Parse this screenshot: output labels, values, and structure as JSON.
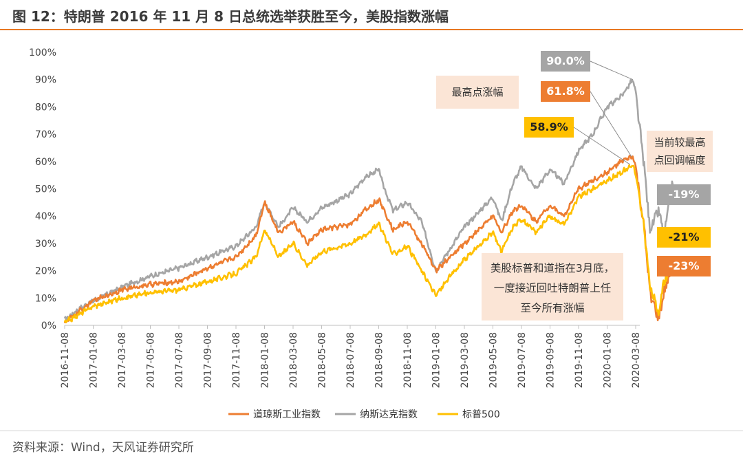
{
  "title": "图 12：特朗普 2016 年 11 月 8 日总统选举获胜至今，美股指数涨幅",
  "source": "资料来源：Wind，天风证券研究所",
  "colors": {
    "dow": "#ed7d31",
    "nasdaq": "#a5a5a5",
    "sp500": "#ffc000",
    "annotation_bg": "#fbe5d6",
    "accent": "#e87722"
  },
  "chart_data": {
    "type": "line",
    "ylabel": "",
    "xlabel": "",
    "ylim": [
      0,
      100
    ],
    "y_ticks": [
      "0%",
      "10%",
      "20%",
      "30%",
      "40%",
      "50%",
      "60%",
      "70%",
      "80%",
      "90%",
      "100%"
    ],
    "x_ticks": [
      "2016-11-08",
      "2017-01-08",
      "2017-03-08",
      "2017-05-08",
      "2017-07-08",
      "2017-09-08",
      "2017-11-08",
      "2018-01-08",
      "2018-03-08",
      "2018-05-08",
      "2018-07-08",
      "2018-09-08",
      "2018-11-08",
      "2019-01-08",
      "2019-03-08",
      "2019-05-08",
      "2019-07-08",
      "2019-09-08",
      "2019-11-08",
      "2020-01-08",
      "2020-03-08"
    ],
    "series": [
      {
        "name": "纳斯达克指数",
        "color": "#a5a5a5",
        "x": [
          0,
          0.5,
          1,
          2,
          3,
          4,
          5,
          6,
          6.7,
          7,
          7.5,
          8,
          8.5,
          9,
          10,
          10.5,
          11,
          11.2,
          11.5,
          12,
          12.5,
          13,
          13.5,
          14,
          15,
          15.3,
          15.7,
          16,
          16.5,
          17,
          17.5,
          18,
          18.5,
          19,
          19.5,
          19.9,
          20,
          20.3,
          20.5,
          20.8,
          21,
          21.3
        ],
        "values": [
          2,
          6,
          9,
          14,
          18,
          21,
          25,
          29,
          36,
          45,
          36,
          43,
          38,
          43,
          48,
          54,
          57,
          50,
          42,
          45,
          38,
          20,
          28,
          36,
          47,
          38,
          52,
          58,
          50,
          57,
          52,
          64,
          70,
          80,
          84,
          90,
          85,
          58,
          35,
          42,
          33,
          53
        ]
      },
      {
        "name": "道琼斯工业指数",
        "color": "#ed7d31",
        "x": [
          0,
          0.5,
          1,
          2,
          3,
          4,
          5,
          6,
          6.7,
          7,
          7.5,
          8,
          8.5,
          9,
          10,
          10.5,
          11,
          11.2,
          11.5,
          12,
          12.5,
          13,
          13.5,
          14,
          15,
          15.3,
          15.7,
          16,
          16.5,
          17,
          17.5,
          18,
          18.5,
          19,
          19.5,
          19.9,
          20,
          20.3,
          20.5,
          20.8,
          21,
          21.3
        ],
        "values": [
          1,
          5,
          9,
          13,
          15,
          16,
          21,
          25,
          33,
          45,
          34,
          38,
          30,
          35,
          37,
          42,
          46,
          42,
          35,
          38,
          30,
          20,
          25,
          30,
          40,
          34,
          42,
          44,
          38,
          44,
          40,
          50,
          53,
          56,
          60,
          61.8,
          58,
          35,
          12,
          2,
          12,
          23
        ]
      },
      {
        "name": "标普500",
        "color": "#ffc000",
        "x": [
          0,
          0.5,
          1,
          2,
          3,
          4,
          5,
          6,
          6.7,
          7,
          7.5,
          8,
          8.5,
          9,
          10,
          10.5,
          11,
          11.2,
          11.5,
          12,
          12.5,
          13,
          13.5,
          14,
          15,
          15.3,
          15.7,
          16,
          16.5,
          17,
          17.5,
          18,
          18.5,
          19,
          19.5,
          19.9,
          20,
          20.3,
          20.5,
          20.8,
          21,
          21.3
        ],
        "values": [
          1,
          4,
          7,
          10,
          12,
          13,
          16,
          19,
          25,
          35,
          25,
          30,
          22,
          27,
          30,
          33,
          37,
          33,
          26,
          29,
          20,
          11,
          18,
          24,
          34,
          27,
          36,
          39,
          34,
          40,
          37,
          47,
          50,
          53,
          56,
          58.9,
          55,
          35,
          14,
          5,
          16,
          25
        ]
      }
    ],
    "annotations": {
      "peak_label": "最高点涨幅",
      "peak_nasdaq": "90.0%",
      "peak_dow": "61.8%",
      "peak_sp500": "58.9%",
      "drawdown_label": "当前较最高点回调幅度",
      "drawdown_nasdaq": "-19%",
      "drawdown_sp500": "-21%",
      "drawdown_dow": "-23%",
      "note": "美股标普和道指在3月底，一度接近回吐特朗普上任至今所有涨幅"
    },
    "legend": [
      "道琼斯工业指数",
      "纳斯达克指数",
      "标普500"
    ],
    "legend_position": "bottom"
  }
}
